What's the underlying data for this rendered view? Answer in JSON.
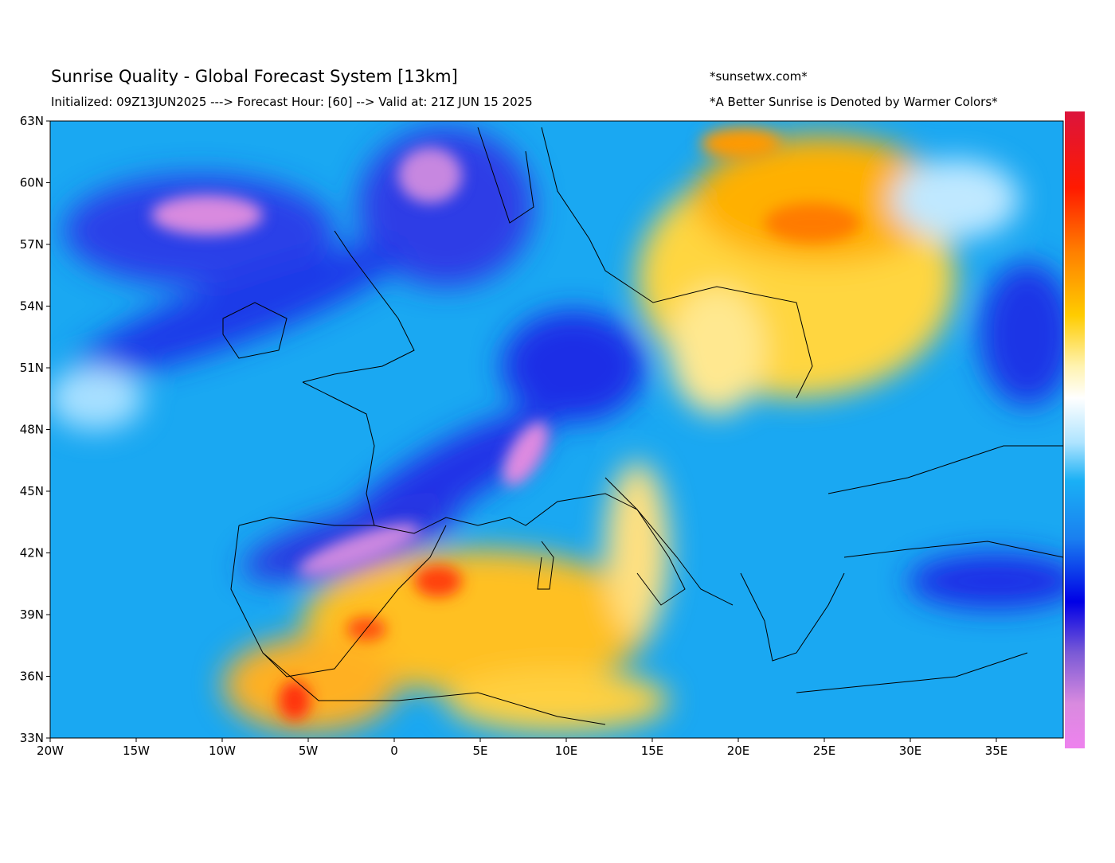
{
  "header": {
    "title": "Sunrise Quality - Global Forecast System [13km]",
    "subtitle": "Initialized: 09Z13JUN2025 ---> Forecast Hour: [60] --> Valid at: 21Z JUN 15 2025",
    "site": "*sunsetwx.com*",
    "note": "*A Better Sunrise is Denoted by Warmer Colors*"
  },
  "map": {
    "lat_labels": [
      "63N",
      "60N",
      "57N",
      "54N",
      "51N",
      "48N",
      "45N",
      "42N",
      "39N",
      "36N",
      "33N"
    ],
    "lon_labels": [
      "20W",
      "15W",
      "10W",
      "5W",
      "0",
      "5E",
      "10E",
      "15E",
      "20E",
      "25E",
      "30E",
      "35E"
    ]
  }
}
